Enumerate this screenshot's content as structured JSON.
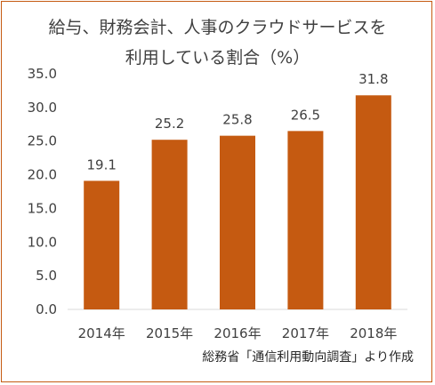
{
  "chart_data": {
    "type": "bar",
    "title_lines": [
      "給与、財務会計、人事のクラウドサービスを",
      "利用している割合（%）"
    ],
    "categories": [
      "2014年",
      "2015年",
      "2016年",
      "2017年",
      "2018年"
    ],
    "values": [
      19.1,
      25.2,
      25.8,
      26.5,
      31.8
    ],
    "value_labels": [
      "19.1",
      "25.2",
      "25.8",
      "26.5",
      "31.8"
    ],
    "ylim": [
      0,
      35
    ],
    "yticks": [
      "0.0",
      "5.0",
      "10.0",
      "15.0",
      "20.0",
      "25.0",
      "30.0",
      "35.0"
    ],
    "bar_color": "#c55a11",
    "grid": false,
    "legend": "none",
    "source": "総務省「通信利用動向調査」より作成"
  }
}
